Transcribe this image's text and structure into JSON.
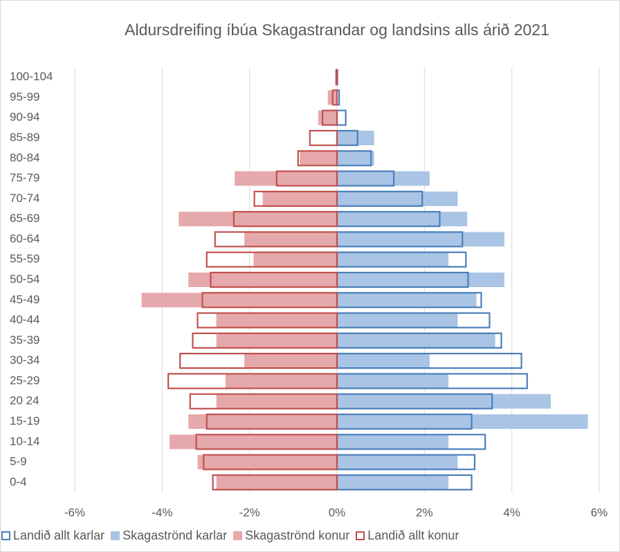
{
  "chart_data": {
    "type": "pyramid",
    "title": "Aldursdreifing íbúa Skagastrandar og landsins alls árið 2021",
    "categories": [
      "0-4",
      "5-9",
      "10-14",
      "15-19",
      "20 24",
      "25-29",
      "30-34",
      "35-39",
      "40-44",
      "45-49",
      "50-54",
      "55-59",
      "60-64",
      "65-69",
      "70-74",
      "75-79",
      "80-84",
      "85-89",
      "90-94",
      "95-99",
      "100-104"
    ],
    "series": [
      {
        "name": "Landið allt karlar",
        "color": "#4a7ebb",
        "style": "outline",
        "values": [
          3.08,
          3.15,
          3.39,
          3.08,
          3.55,
          4.35,
          4.22,
          3.76,
          3.49,
          3.3,
          3.0,
          2.95,
          2.87,
          2.35,
          1.95,
          1.3,
          0.78,
          0.47,
          0.2,
          0.05,
          0.01
        ]
      },
      {
        "name": "Skagaströnd karlar",
        "color": "#a9c4e4",
        "style": "filled",
        "values": [
          2.55,
          2.76,
          2.55,
          5.74,
          4.89,
          2.55,
          2.12,
          3.62,
          2.76,
          3.19,
          3.83,
          2.55,
          3.83,
          2.98,
          2.76,
          2.12,
          0.85,
          0.85,
          0,
          0,
          0
        ]
      },
      {
        "name": "Skagaströnd konur",
        "color": "#e6a9ab",
        "style": "filled",
        "values": [
          -2.76,
          -3.19,
          -3.83,
          -3.4,
          -2.76,
          -2.55,
          -2.12,
          -2.76,
          -2.76,
          -4.47,
          -3.4,
          -1.91,
          -2.12,
          -3.62,
          -1.7,
          -2.34,
          -0.85,
          0,
          -0.43,
          -0.21,
          0
        ]
      },
      {
        "name": "Landið allt konur",
        "color": "#c0504d",
        "style": "outline",
        "values": [
          -2.84,
          -3.05,
          -3.22,
          -2.98,
          -3.36,
          -3.86,
          -3.59,
          -3.3,
          -3.19,
          -3.08,
          -2.89,
          -2.98,
          -2.79,
          -2.36,
          -1.89,
          -1.38,
          -0.89,
          -0.62,
          -0.33,
          -0.1,
          -0.02
        ]
      }
    ],
    "xlim": [
      -6,
      6
    ],
    "xticks": [
      {
        "value": -6,
        "label": "-6%"
      },
      {
        "value": -4,
        "label": "-4%"
      },
      {
        "value": -2,
        "label": "-2%"
      },
      {
        "value": 0,
        "label": "0%"
      },
      {
        "value": 2,
        "label": "2%"
      },
      {
        "value": 4,
        "label": "4%"
      },
      {
        "value": 6,
        "label": "6%"
      }
    ],
    "grid": true,
    "legend": "bottom"
  }
}
